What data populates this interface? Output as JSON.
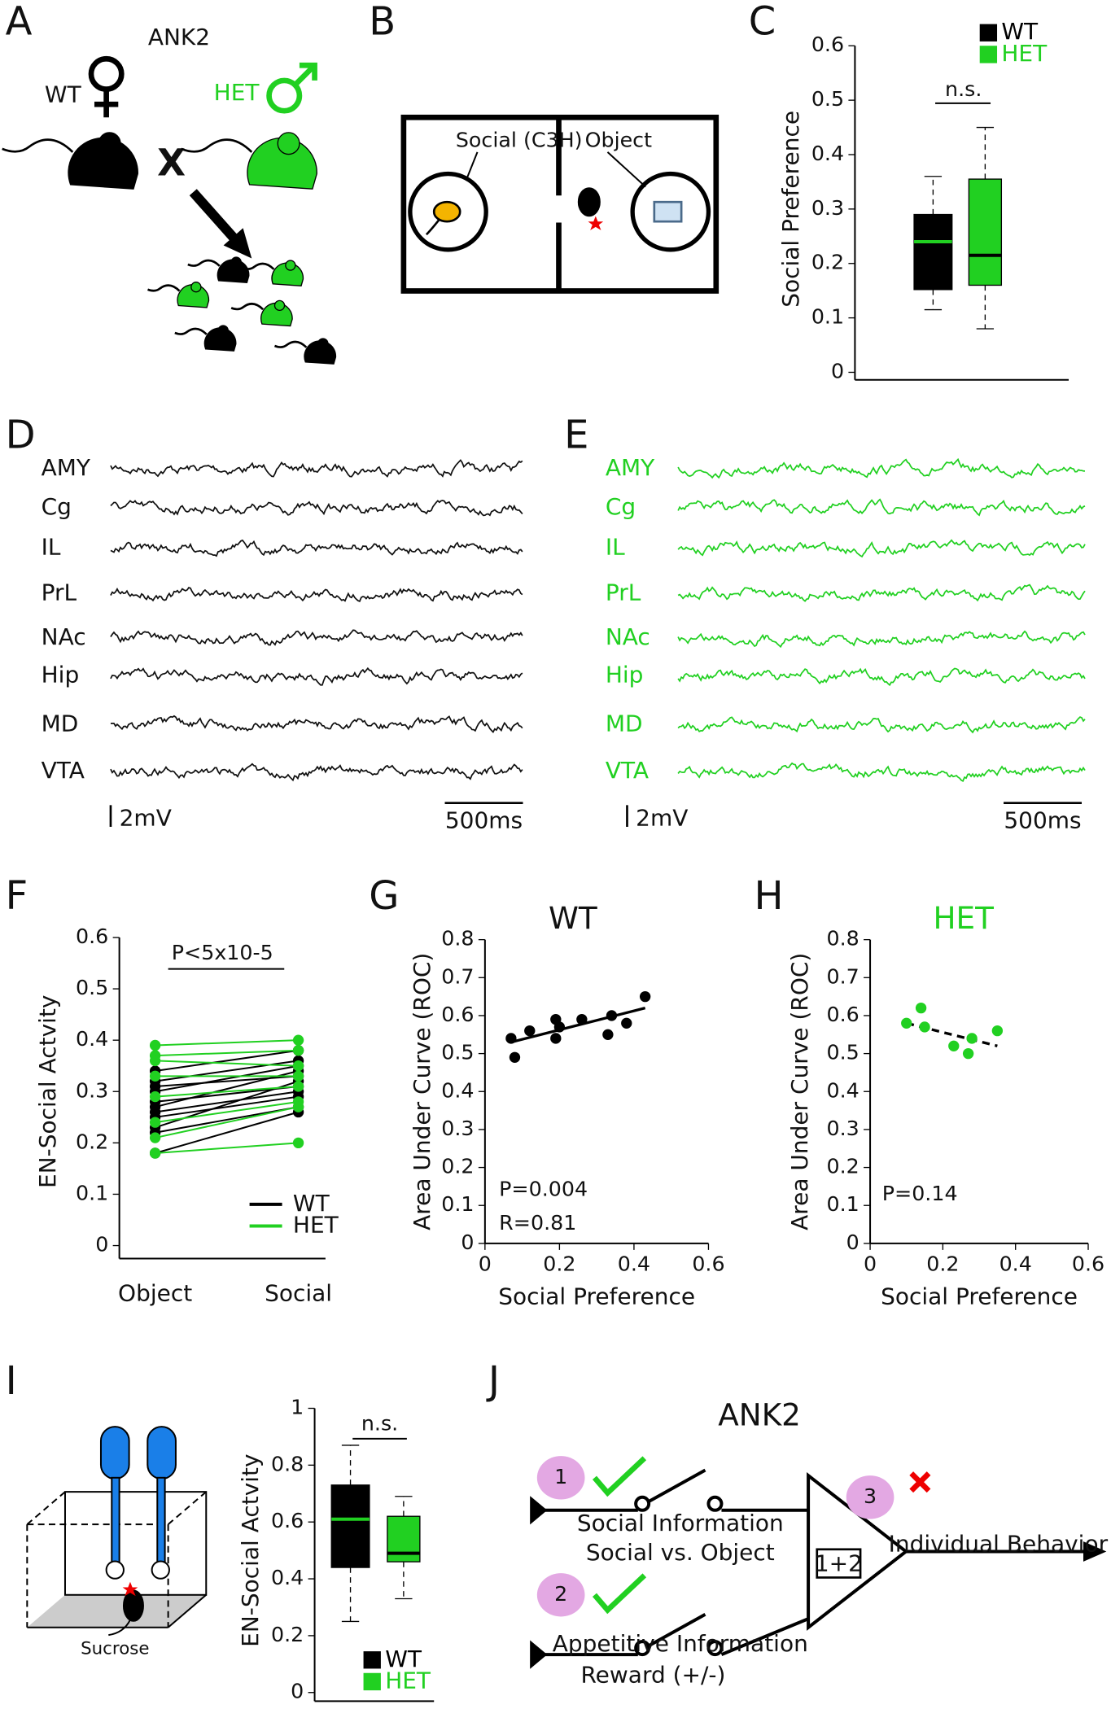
{
  "panel_labels": [
    "A",
    "B",
    "C",
    "D",
    "E",
    "F",
    "G",
    "H",
    "I",
    "J"
  ],
  "panel_a": {
    "gene": "ANK2",
    "female": "WT",
    "male": "HET",
    "cross": "X"
  },
  "panel_b": {
    "social": "Social (C3H)",
    "object": "Object"
  },
  "traces": {
    "regions": [
      "AMY",
      "Cg",
      "IL",
      "PrL",
      "NAc",
      "Hip",
      "MD",
      "VTA"
    ],
    "voltage_scale": "2mV",
    "time_scale": "500ms"
  },
  "panel_i": {
    "stimulus": "Sucrose"
  },
  "panel_j": {
    "title": "ANK2",
    "steps": [
      "1",
      "2",
      "3"
    ],
    "input_1": [
      "Social Information",
      "Social vs. Object"
    ],
    "input_2": [
      "Appetitive Information",
      "Reward (+/-)"
    ],
    "sum": "1+2",
    "output": "Individual Behavior"
  },
  "chart_data": [
    {
      "type": "box",
      "ylabel": "Social Preference",
      "ylim": [
        0,
        0.6
      ],
      "yticks": [
        0,
        0.1,
        0.2,
        0.3,
        0.4,
        0.5,
        0.6
      ],
      "annotations": [
        "n.s."
      ],
      "series": [
        {
          "name": "WT",
          "color": "#000000",
          "median_color": "#21d021",
          "whislo": 0.115,
          "q1": 0.152,
          "med": 0.24,
          "q3": 0.29,
          "whishi": 0.36
        },
        {
          "name": "HET",
          "color": "#21d021",
          "median_color": "#000000",
          "whislo": 0.08,
          "q1": 0.16,
          "med": 0.215,
          "q3": 0.355,
          "whishi": 0.45
        }
      ]
    },
    {
      "type": "paired",
      "ylabel": "EN-Social Actvity",
      "categories": [
        "Object",
        "Social"
      ],
      "ylim": [
        0,
        0.6
      ],
      "yticks": [
        0,
        0.1,
        0.2,
        0.3,
        0.4,
        0.5,
        0.6
      ],
      "annotations": [
        "P<5x10-5"
      ],
      "series": [
        {
          "name": "WT",
          "color": "#000000",
          "values": [
            [
              0.34,
              0.38
            ],
            [
              0.32,
              0.36
            ],
            [
              0.31,
              0.33
            ],
            [
              0.3,
              0.35
            ],
            [
              0.28,
              0.31
            ],
            [
              0.27,
              0.34
            ],
            [
              0.26,
              0.3
            ],
            [
              0.25,
              0.29
            ],
            [
              0.23,
              0.32
            ],
            [
              0.22,
              0.27
            ],
            [
              0.18,
              0.26
            ]
          ]
        },
        {
          "name": "HET",
          "color": "#21d021",
          "values": [
            [
              0.39,
              0.4
            ],
            [
              0.37,
              0.38
            ],
            [
              0.36,
              0.35
            ],
            [
              0.33,
              0.33
            ],
            [
              0.29,
              0.31
            ],
            [
              0.24,
              0.28
            ],
            [
              0.21,
              0.27
            ],
            [
              0.18,
              0.2
            ]
          ]
        }
      ]
    },
    {
      "type": "scatter",
      "title": "WT",
      "title_color": "#111111",
      "xlabel": "Social Preference",
      "ylabel": "Area Under Curve (ROC)",
      "xlim": [
        0,
        0.6
      ],
      "xticks": [
        0,
        0.2,
        0.4,
        0.6
      ],
      "ylim": [
        0,
        0.8
      ],
      "yticks": [
        0,
        0.1,
        0.2,
        0.3,
        0.4,
        0.5,
        0.6,
        0.7,
        0.8
      ],
      "annotations": [
        "P=0.004",
        "R=0.81"
      ],
      "series": [
        {
          "color": "#000000",
          "x": [
            0.07,
            0.08,
            0.12,
            0.19,
            0.19,
            0.2,
            0.26,
            0.33,
            0.34,
            0.38,
            0.43
          ],
          "y": [
            0.54,
            0.49,
            0.56,
            0.59,
            0.54,
            0.57,
            0.59,
            0.55,
            0.6,
            0.58,
            0.65
          ]
        }
      ],
      "fit": {
        "x": [
          0.07,
          0.43
        ],
        "y": [
          0.53,
          0.62
        ],
        "dashed": false
      }
    },
    {
      "type": "scatter",
      "title": "HET",
      "title_color": "#21d021",
      "xlabel": "Social Preference",
      "ylabel": "Area Under Curve (ROC)",
      "xlim": [
        0,
        0.6
      ],
      "xticks": [
        0,
        0.2,
        0.4,
        0.6
      ],
      "ylim": [
        0,
        0.8
      ],
      "yticks": [
        0,
        0.1,
        0.2,
        0.3,
        0.4,
        0.5,
        0.6,
        0.7,
        0.8
      ],
      "annotations": [
        "P=0.14"
      ],
      "series": [
        {
          "color": "#21d021",
          "x": [
            0.1,
            0.14,
            0.15,
            0.23,
            0.27,
            0.28,
            0.35
          ],
          "y": [
            0.58,
            0.62,
            0.57,
            0.52,
            0.5,
            0.54,
            0.56
          ]
        }
      ],
      "fit": {
        "x": [
          0.1,
          0.35
        ],
        "y": [
          0.58,
          0.52
        ],
        "dashed": true
      }
    },
    {
      "type": "box",
      "ylabel": "EN-Social Actvity",
      "ylim": [
        0,
        1
      ],
      "yticks": [
        0,
        0.2,
        0.4,
        0.6,
        0.8,
        1
      ],
      "annotations": [
        "n.s."
      ],
      "series": [
        {
          "name": "WT",
          "color": "#000000",
          "median_color": "#21d021",
          "whislo": 0.25,
          "q1": 0.44,
          "med": 0.61,
          "q3": 0.73,
          "whishi": 0.87
        },
        {
          "name": "HET",
          "color": "#21d021",
          "median_color": "#000000",
          "whislo": 0.33,
          "q1": 0.46,
          "med": 0.49,
          "q3": 0.62,
          "whishi": 0.69
        }
      ]
    }
  ]
}
